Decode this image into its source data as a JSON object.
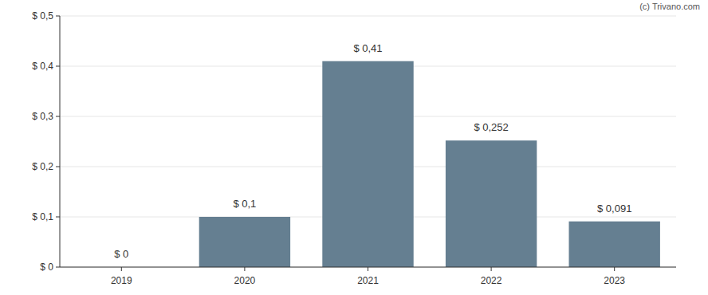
{
  "chart_data": {
    "type": "bar",
    "annotations": [
      "(c) Trivano.com"
    ],
    "categories": [
      "2019",
      "2020",
      "2021",
      "2022",
      "2023"
    ],
    "values": [
      0,
      0.1,
      0.41,
      0.252,
      0.091
    ],
    "value_labels": [
      "$ 0",
      "$ 0,1",
      "$ 0,41",
      "$ 0,252",
      "$ 0,091"
    ],
    "color": "#657f91",
    "ylim": [
      0,
      0.5
    ],
    "yticks": [
      {
        "value": 0,
        "label": "$ 0"
      },
      {
        "value": 0.1,
        "label": "$ 0,1"
      },
      {
        "value": 0.2,
        "label": "$ 0,2"
      },
      {
        "value": 0.3,
        "label": "$ 0,3"
      },
      {
        "value": 0.4,
        "label": "$ 0,4"
      },
      {
        "value": 0.5,
        "label": "$ 0,5"
      }
    ],
    "grid": true,
    "data_labels": true
  }
}
